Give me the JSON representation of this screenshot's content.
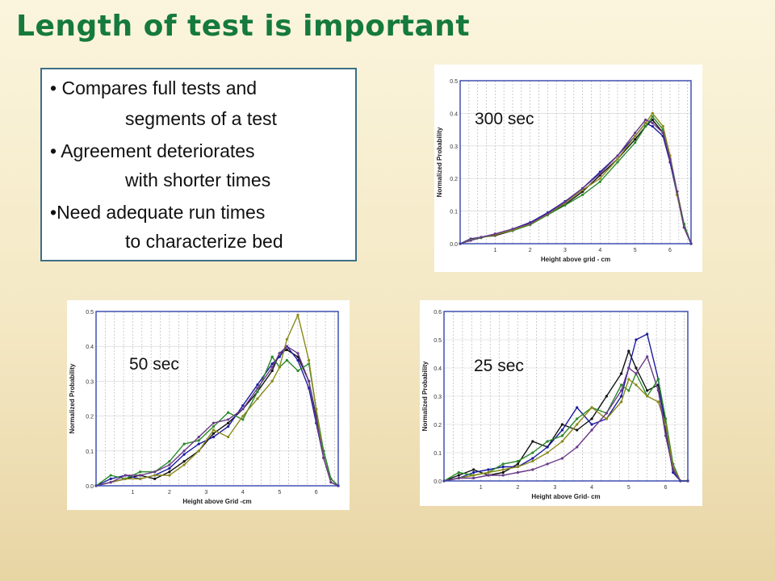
{
  "title": "Length of test is important",
  "bullets": [
    {
      "bullet": "•",
      "line1": "Compares full tests and",
      "line2": "segments of a test"
    },
    {
      "bullet": "•",
      "line1": "Agreement deteriorates",
      "line2": "with shorter times"
    },
    {
      "bullet": "•",
      "line1": "Need adequate run times",
      "line2": "to characterize bed"
    }
  ],
  "colors": {
    "title": "#157a3c",
    "box_border": "#3b6f84",
    "axis_frame": "#3344aa",
    "series": [
      "#111111",
      "#1a1aa0",
      "#2a8a2a",
      "#8a8a1a",
      "#6a3a8a",
      "#777777"
    ]
  },
  "chart_data": [
    {
      "id": "chart-300",
      "type": "line",
      "overlay_label": "300 sec",
      "xlabel": "Height above grid - cm",
      "ylabel": "Normalized Probability",
      "xlim": [
        0,
        6.6
      ],
      "ylim": [
        0,
        0.5
      ],
      "xticks": [
        1,
        2,
        3,
        4,
        5,
        6
      ],
      "yticks": [
        0.0,
        0.1,
        0.2,
        0.3,
        0.4,
        0.5
      ],
      "ytick_labels": [
        "0.0",
        "0.1",
        "0.2",
        "0.3",
        "0.4",
        "0.5"
      ],
      "series": [
        {
          "x": [
            0,
            0.3,
            0.6,
            1.0,
            1.5,
            2.0,
            2.5,
            3.0,
            3.5,
            4.0,
            4.5,
            5.0,
            5.3,
            5.5,
            5.8,
            6.0,
            6.2,
            6.4,
            6.6
          ],
          "y": [
            0.0,
            0.01,
            0.02,
            0.025,
            0.04,
            0.06,
            0.09,
            0.12,
            0.16,
            0.21,
            0.26,
            0.32,
            0.36,
            0.38,
            0.34,
            0.26,
            0.16,
            0.06,
            0.0
          ]
        },
        {
          "x": [
            0,
            0.3,
            0.6,
            1.0,
            1.5,
            2.0,
            2.5,
            3.0,
            3.5,
            4.0,
            4.5,
            5.0,
            5.3,
            5.5,
            5.8,
            6.0,
            6.2,
            6.4,
            6.6
          ],
          "y": [
            0.0,
            0.015,
            0.02,
            0.03,
            0.045,
            0.065,
            0.095,
            0.13,
            0.17,
            0.22,
            0.27,
            0.33,
            0.37,
            0.36,
            0.33,
            0.25,
            0.15,
            0.05,
            0.0
          ]
        },
        {
          "x": [
            0,
            0.3,
            0.6,
            1.0,
            1.5,
            2.0,
            2.5,
            3.0,
            3.5,
            4.0,
            4.5,
            5.0,
            5.3,
            5.5,
            5.8,
            6.0,
            6.2,
            6.4,
            6.6
          ],
          "y": [
            0.0,
            0.01,
            0.018,
            0.028,
            0.04,
            0.058,
            0.088,
            0.118,
            0.15,
            0.19,
            0.25,
            0.31,
            0.36,
            0.39,
            0.35,
            0.27,
            0.16,
            0.06,
            0.0
          ]
        },
        {
          "x": [
            0,
            0.3,
            0.6,
            1.0,
            1.5,
            2.0,
            2.5,
            3.0,
            3.5,
            4.0,
            4.5,
            5.0,
            5.3,
            5.5,
            5.8,
            6.0,
            6.2,
            6.4,
            6.6
          ],
          "y": [
            0.0,
            0.012,
            0.02,
            0.027,
            0.042,
            0.06,
            0.09,
            0.125,
            0.165,
            0.2,
            0.26,
            0.33,
            0.37,
            0.4,
            0.36,
            0.27,
            0.15,
            0.05,
            0.0
          ]
        },
        {
          "x": [
            0,
            0.3,
            0.6,
            1.0,
            1.5,
            2.0,
            2.5,
            3.0,
            3.5,
            4.0,
            4.5,
            5.0,
            5.3,
            5.5,
            5.8,
            6.0,
            6.2,
            6.4,
            6.6
          ],
          "y": [
            0.0,
            0.01,
            0.02,
            0.03,
            0.045,
            0.062,
            0.092,
            0.128,
            0.17,
            0.215,
            0.27,
            0.34,
            0.38,
            0.37,
            0.34,
            0.26,
            0.16,
            0.05,
            0.0
          ]
        }
      ]
    },
    {
      "id": "chart-50",
      "type": "line",
      "overlay_label": "50 sec",
      "xlabel": "Height above Grid -cm",
      "ylabel": "Normalized Probability",
      "xlim": [
        0,
        6.6
      ],
      "ylim": [
        0,
        0.5
      ],
      "xticks": [
        1,
        2,
        3,
        4,
        5,
        6
      ],
      "yticks": [
        0.0,
        0.1,
        0.2,
        0.3,
        0.4,
        0.5
      ],
      "ytick_labels": [
        "0.0",
        "0.1",
        "0.2",
        "0.3",
        "0.4",
        "0.5"
      ],
      "series": [
        {
          "x": [
            0,
            0.4,
            0.8,
            1.2,
            1.6,
            2.0,
            2.4,
            2.8,
            3.2,
            3.6,
            4.0,
            4.4,
            4.8,
            5.0,
            5.2,
            5.5,
            5.8,
            6.0,
            6.2,
            6.4,
            6.6
          ],
          "y": [
            0.0,
            0.01,
            0.02,
            0.03,
            0.02,
            0.04,
            0.07,
            0.1,
            0.15,
            0.18,
            0.22,
            0.27,
            0.33,
            0.38,
            0.39,
            0.37,
            0.3,
            0.2,
            0.1,
            0.02,
            0.0
          ]
        },
        {
          "x": [
            0,
            0.4,
            0.8,
            1.2,
            1.6,
            2.0,
            2.4,
            2.8,
            3.2,
            3.6,
            4.0,
            4.4,
            4.8,
            5.0,
            5.2,
            5.5,
            5.8,
            6.0,
            6.2,
            6.4,
            6.6
          ],
          "y": [
            0.0,
            0.02,
            0.03,
            0.02,
            0.03,
            0.05,
            0.09,
            0.12,
            0.14,
            0.17,
            0.23,
            0.29,
            0.35,
            0.37,
            0.4,
            0.36,
            0.28,
            0.18,
            0.08,
            0.01,
            0.0
          ]
        },
        {
          "x": [
            0,
            0.4,
            0.8,
            1.2,
            1.6,
            2.0,
            2.4,
            2.8,
            3.2,
            3.6,
            4.0,
            4.4,
            4.8,
            5.0,
            5.2,
            5.5,
            5.8,
            6.0,
            6.2,
            6.4,
            6.6
          ],
          "y": [
            0.0,
            0.03,
            0.02,
            0.04,
            0.04,
            0.07,
            0.12,
            0.13,
            0.17,
            0.21,
            0.19,
            0.27,
            0.37,
            0.34,
            0.36,
            0.33,
            0.35,
            0.22,
            0.1,
            0.02,
            0.0
          ]
        },
        {
          "x": [
            0,
            0.4,
            0.8,
            1.2,
            1.6,
            2.0,
            2.4,
            2.8,
            3.2,
            3.6,
            4.0,
            4.4,
            4.8,
            5.0,
            5.2,
            5.5,
            5.8,
            6.0,
            6.2,
            6.4,
            6.6
          ],
          "y": [
            0.0,
            0.01,
            0.02,
            0.02,
            0.03,
            0.03,
            0.06,
            0.1,
            0.16,
            0.14,
            0.2,
            0.25,
            0.3,
            0.34,
            0.42,
            0.49,
            0.36,
            0.22,
            0.08,
            0.01,
            0.0
          ]
        },
        {
          "x": [
            0,
            0.4,
            0.8,
            1.2,
            1.6,
            2.0,
            2.4,
            2.8,
            3.2,
            3.6,
            4.0,
            4.4,
            4.8,
            5.0,
            5.2,
            5.5,
            5.8,
            6.0,
            6.2,
            6.4,
            6.6
          ],
          "y": [
            0.0,
            0.01,
            0.03,
            0.03,
            0.04,
            0.06,
            0.1,
            0.14,
            0.18,
            0.19,
            0.22,
            0.28,
            0.34,
            0.38,
            0.4,
            0.38,
            0.3,
            0.19,
            0.08,
            0.01,
            0.0
          ]
        }
      ]
    },
    {
      "id": "chart-25",
      "type": "line",
      "overlay_label": "25 sec",
      "xlabel": "Height above Grid- cm",
      "ylabel": "Normalized Probability",
      "xlim": [
        0,
        6.6
      ],
      "ylim": [
        0,
        0.6
      ],
      "xticks": [
        1,
        2,
        3,
        4,
        5,
        6
      ],
      "yticks": [
        0.0,
        0.1,
        0.2,
        0.3,
        0.4,
        0.5,
        0.6
      ],
      "ytick_labels": [
        "0.0",
        "0.1",
        "0.2",
        "0.3",
        "0.4",
        "0.5",
        "0.6"
      ],
      "series": [
        {
          "x": [
            0,
            0.4,
            0.8,
            1.2,
            1.6,
            2.0,
            2.4,
            2.8,
            3.2,
            3.6,
            4.0,
            4.4,
            4.8,
            5.0,
            5.2,
            5.5,
            5.8,
            6.0,
            6.2,
            6.4,
            6.6
          ],
          "y": [
            0.0,
            0.02,
            0.04,
            0.02,
            0.03,
            0.06,
            0.14,
            0.12,
            0.2,
            0.18,
            0.22,
            0.3,
            0.38,
            0.46,
            0.4,
            0.32,
            0.34,
            0.2,
            0.04,
            0.0,
            0.0
          ]
        },
        {
          "x": [
            0,
            0.4,
            0.8,
            1.2,
            1.6,
            2.0,
            2.4,
            2.8,
            3.2,
            3.6,
            4.0,
            4.4,
            4.8,
            5.0,
            5.2,
            5.5,
            5.8,
            6.0,
            6.2,
            6.4,
            6.6
          ],
          "y": [
            0.0,
            0.01,
            0.03,
            0.04,
            0.05,
            0.05,
            0.08,
            0.12,
            0.18,
            0.26,
            0.2,
            0.22,
            0.3,
            0.4,
            0.5,
            0.52,
            0.36,
            0.18,
            0.03,
            0.0,
            0.0
          ]
        },
        {
          "x": [
            0,
            0.4,
            0.8,
            1.2,
            1.6,
            2.0,
            2.4,
            2.8,
            3.2,
            3.6,
            4.0,
            4.4,
            4.8,
            5.0,
            5.2,
            5.5,
            5.8,
            6.0,
            6.2,
            6.4,
            6.6
          ],
          "y": [
            0.0,
            0.03,
            0.02,
            0.03,
            0.06,
            0.07,
            0.1,
            0.14,
            0.16,
            0.22,
            0.26,
            0.24,
            0.34,
            0.32,
            0.38,
            0.3,
            0.36,
            0.22,
            0.06,
            0.0,
            0.0
          ]
        },
        {
          "x": [
            0,
            0.4,
            0.8,
            1.2,
            1.6,
            2.0,
            2.4,
            2.8,
            3.2,
            3.6,
            4.0,
            4.4,
            4.8,
            5.0,
            5.2,
            5.5,
            5.8,
            6.0,
            6.2,
            6.4,
            6.6
          ],
          "y": [
            0.0,
            0.01,
            0.02,
            0.03,
            0.04,
            0.05,
            0.07,
            0.1,
            0.14,
            0.2,
            0.26,
            0.22,
            0.28,
            0.36,
            0.34,
            0.3,
            0.28,
            0.2,
            0.05,
            0.0,
            0.0
          ]
        },
        {
          "x": [
            0,
            0.4,
            0.8,
            1.2,
            1.6,
            2.0,
            2.4,
            2.8,
            3.2,
            3.6,
            4.0,
            4.4,
            4.8,
            5.0,
            5.2,
            5.5,
            5.8,
            6.0,
            6.2,
            6.4,
            6.6
          ],
          "y": [
            0.0,
            0.01,
            0.01,
            0.02,
            0.02,
            0.03,
            0.04,
            0.06,
            0.08,
            0.12,
            0.18,
            0.24,
            0.32,
            0.4,
            0.38,
            0.44,
            0.32,
            0.16,
            0.04,
            0.0,
            0.0
          ]
        }
      ]
    }
  ]
}
